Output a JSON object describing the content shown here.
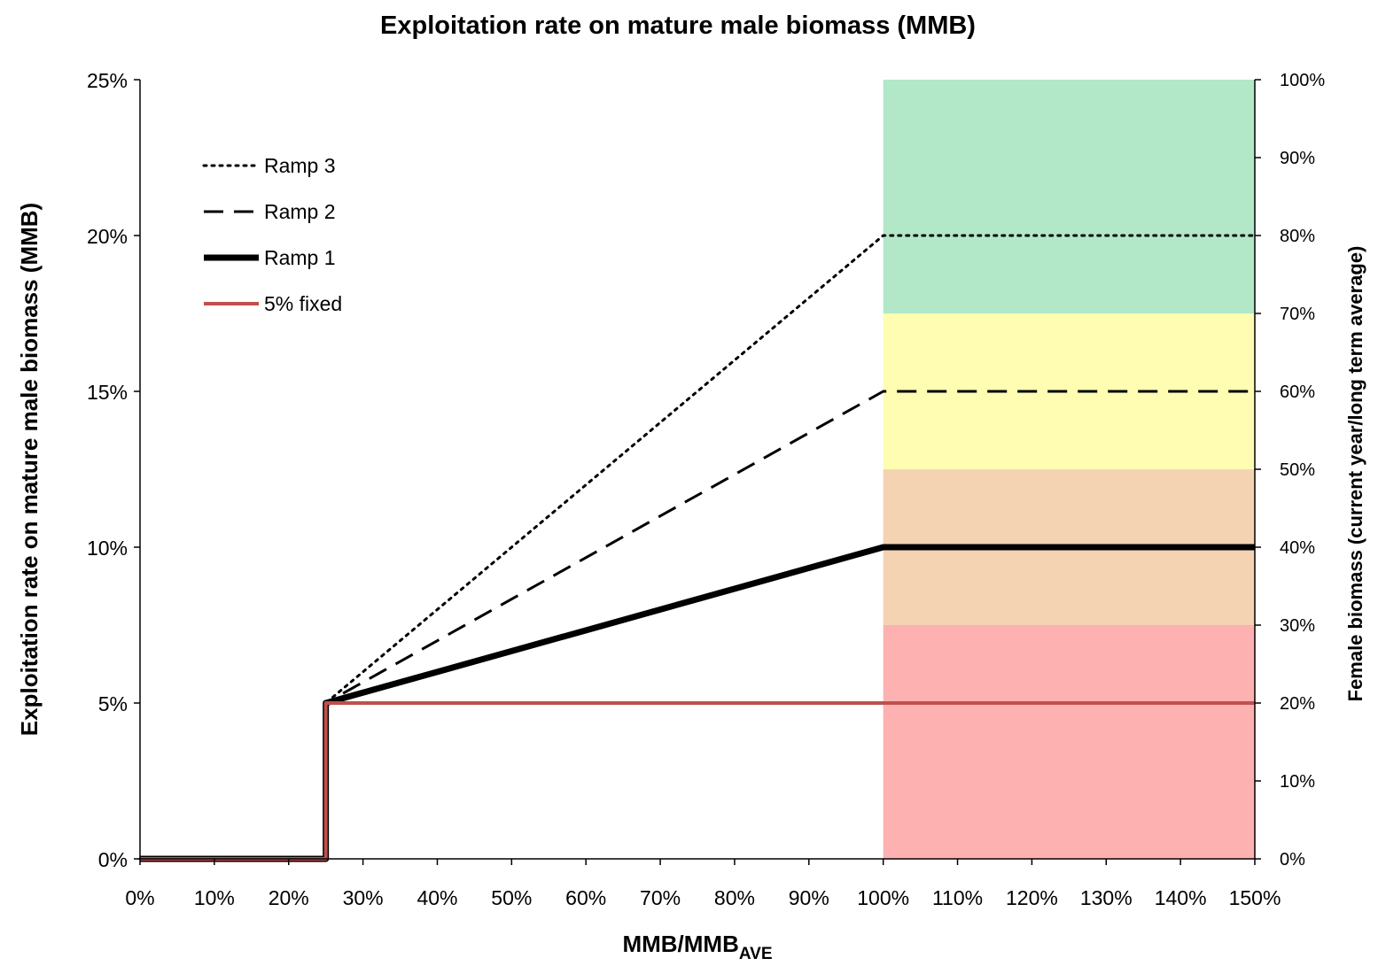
{
  "chart_data": {
    "type": "line",
    "title": "Exploitation rate on mature male biomass (MMB)",
    "xlabel_main": "MMB/MMB",
    "xlabel_sub": "AVE",
    "ylabel": "Exploitation rate on mature male biomass (MMB)",
    "y2label": "Female biomass  (current year/long term average)",
    "xlim": [
      0,
      150
    ],
    "ylim": [
      0,
      25
    ],
    "y2lim": [
      0,
      100
    ],
    "xticks": [
      "0%",
      "10%",
      "20%",
      "30%",
      "40%",
      "50%",
      "60%",
      "70%",
      "80%",
      "90%",
      "100%",
      "110%",
      "120%",
      "130%",
      "140%",
      "150%"
    ],
    "yticks": [
      "0%",
      "5%",
      "10%",
      "15%",
      "20%",
      "25%"
    ],
    "y2ticks": [
      "0%",
      "10%",
      "20%",
      "30%",
      "40%",
      "50%",
      "60%",
      "70%",
      "80%",
      "90%",
      "100%"
    ],
    "legend_position": "top-left",
    "grid": false,
    "bands": [
      {
        "x_from": 100,
        "x_to": 150,
        "y2_from": 0,
        "y2_to": 30,
        "color": "#fdb1b1"
      },
      {
        "x_from": 100,
        "x_to": 150,
        "y2_from": 30,
        "y2_to": 50,
        "color": "#f4d3b2"
      },
      {
        "x_from": 100,
        "x_to": 150,
        "y2_from": 50,
        "y2_to": 70,
        "color": "#fefdb2"
      },
      {
        "x_from": 100,
        "x_to": 150,
        "y2_from": 70,
        "y2_to": 100,
        "color": "#b2e7c8"
      }
    ],
    "series": [
      {
        "name": "Ramp 3",
        "style": "dotted",
        "color": "#000000",
        "x": [
          0,
          25,
          25,
          100,
          150
        ],
        "y": [
          0,
          0,
          5,
          20,
          20
        ]
      },
      {
        "name": "Ramp 2",
        "style": "dashed",
        "color": "#000000",
        "x": [
          0,
          25,
          25,
          100,
          150
        ],
        "y": [
          0,
          0,
          5,
          15,
          15
        ]
      },
      {
        "name": "Ramp 1",
        "style": "thick",
        "color": "#000000",
        "x": [
          0,
          25,
          25,
          100,
          150
        ],
        "y": [
          0,
          0,
          5,
          10,
          10
        ]
      },
      {
        "name": "5% fixed",
        "style": "solid",
        "color": "#c0504d",
        "x": [
          0,
          25,
          25,
          150
        ],
        "y": [
          0,
          0,
          5,
          5
        ]
      }
    ]
  }
}
